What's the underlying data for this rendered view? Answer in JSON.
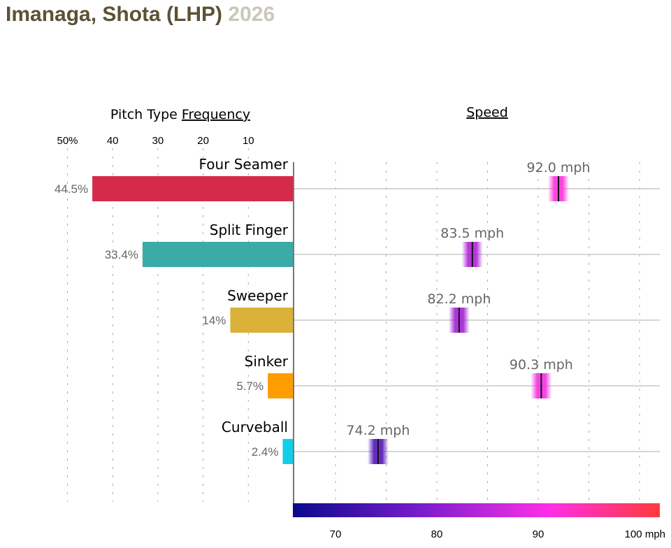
{
  "header": {
    "player": "Imanaga, Shota (LHP)",
    "year": "2026"
  },
  "chart_data": [
    {
      "type": "bar",
      "title_prefix": "Pitch Type",
      "title_link": "Frequency",
      "orientation": "horizontal-left",
      "categories": [
        "Four Seamer",
        "Split Finger",
        "Sweeper",
        "Sinker",
        "Curveball"
      ],
      "values": [
        44.5,
        33.4,
        14,
        5.7,
        2.4
      ],
      "value_labels": [
        "44.5%",
        "33.4%",
        "14%",
        "5.7%",
        "2.4%"
      ],
      "colors": [
        "#d42b4a",
        "#3aaba6",
        "#dbb13a",
        "#ff9d00",
        "#12cfe8"
      ],
      "tick_values": [
        50,
        40,
        30,
        20,
        10
      ],
      "tick_labels": [
        "50%",
        "40",
        "30",
        "20",
        "10"
      ],
      "xlim": [
        0,
        50
      ],
      "grid": true
    },
    {
      "type": "scatter",
      "title": "Speed",
      "categories": [
        "Four Seamer",
        "Split Finger",
        "Sweeper",
        "Sinker",
        "Curveball"
      ],
      "values": [
        92.0,
        83.5,
        82.2,
        90.3,
        74.2
      ],
      "value_labels": [
        "92.0 mph",
        "83.5 mph",
        "82.2 mph",
        "90.3 mph",
        "74.2 mph"
      ],
      "xlim": [
        65.9,
        102.1
      ],
      "tick_values": [
        70,
        80,
        90,
        100
      ],
      "tick_labels": [
        "70",
        "80",
        "90",
        "100 mph"
      ],
      "grid_step": 5,
      "colorscale": [
        "#0a0a8c",
        "#7a1ccc",
        "#ff2fe6",
        "#ff3a3a"
      ]
    }
  ]
}
